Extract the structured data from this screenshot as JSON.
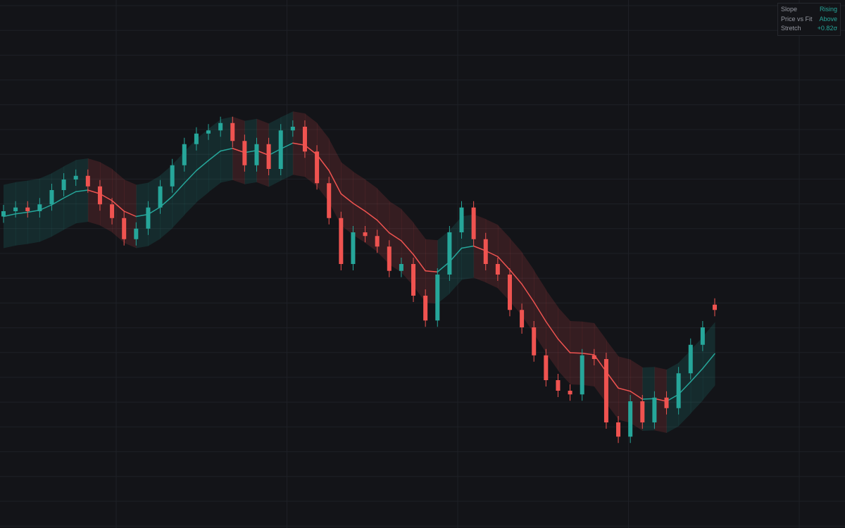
{
  "chart_data": {
    "type": "candlestick",
    "ylim": [
      0,
      100
    ],
    "up_color": "#26a69a",
    "down_color": "#ef5350",
    "grid": true,
    "open": [
      59,
      60,
      60.7,
      60,
      61.3,
      64,
      66,
      66.7,
      64.7,
      61.3,
      58.7,
      54.7,
      56.7,
      60.7,
      64.7,
      68.7,
      72.7,
      74.7,
      75.3,
      76.7,
      73.3,
      68.7,
      72.7,
      68,
      75.3,
      76,
      71.3,
      65.3,
      58.7,
      50,
      56,
      55.3,
      53.3,
      48.7,
      50,
      44,
      39.3,
      48,
      56,
      60.7,
      54.7,
      50,
      48,
      41.3,
      38,
      32.7,
      28,
      26,
      25.3,
      32.7,
      32,
      20,
      17.3,
      24,
      20,
      24.7,
      22.7,
      29.3,
      34.7,
      42.3
    ],
    "high": [
      61.2,
      61.9,
      61.9,
      62.5,
      65.2,
      67.2,
      67.9,
      67.9,
      65.9,
      62.5,
      59.9,
      57.9,
      61.9,
      65.9,
      69.9,
      73.9,
      75.9,
      76.5,
      77.9,
      77.9,
      74.5,
      73.9,
      73.9,
      76.5,
      77.2,
      77.2,
      72.5,
      66.5,
      59.9,
      57.2,
      57.2,
      56.5,
      54.5,
      51.2,
      51.2,
      45.2,
      49.2,
      57.2,
      61.9,
      61.9,
      55.9,
      51.2,
      49.2,
      42.5,
      39.2,
      33.9,
      29.2,
      27.2,
      33.9,
      33.9,
      33.2,
      21.2,
      25.2,
      25.2,
      25.9,
      25.9,
      30.5,
      35.9,
      39.2,
      43.5
    ],
    "low": [
      57.8,
      58.8,
      58.8,
      58.8,
      60.1,
      62.8,
      64.8,
      63.5,
      60.1,
      57.5,
      53.5,
      53.5,
      55.5,
      59.5,
      63.5,
      67.5,
      71.5,
      73.5,
      74.1,
      72.1,
      67.5,
      67.5,
      66.8,
      66.8,
      74.1,
      70.1,
      64.1,
      57.5,
      48.8,
      48.8,
      54.1,
      52.1,
      47.5,
      47.5,
      42.8,
      38.1,
      38.1,
      46.8,
      54.8,
      53.5,
      48.8,
      46.8,
      40.1,
      36.8,
      31.5,
      26.8,
      24.8,
      24.1,
      24.1,
      30.8,
      18.8,
      16.1,
      16.1,
      18.8,
      18.8,
      21.5,
      21.5,
      28.1,
      33.5,
      40.1
    ],
    "close": [
      60,
      60.7,
      60,
      61.3,
      64,
      66,
      66.7,
      64.7,
      61.3,
      58.7,
      54.7,
      56.7,
      60.7,
      64.7,
      68.7,
      72.7,
      74.7,
      75.3,
      76.7,
      73.3,
      68.7,
      72.7,
      68,
      75.3,
      76,
      71.3,
      65.3,
      58.7,
      50,
      56,
      55.3,
      53.3,
      48.7,
      50,
      44,
      39.3,
      48,
      56,
      60.7,
      54.7,
      50,
      48,
      41.3,
      38,
      32.7,
      28,
      26,
      25.3,
      32.7,
      32,
      20,
      17.3,
      24,
      20,
      24.7,
      22.7,
      29.3,
      34.7,
      38,
      41.3
    ],
    "fit": [
      59,
      59.5,
      59.8,
      60.2,
      61.2,
      62.5,
      63.7,
      64,
      63.3,
      62,
      60,
      59,
      59.4,
      60.8,
      62.8,
      65.3,
      67.7,
      69.6,
      71.4,
      71.9,
      71.1,
      71.5,
      70.6,
      71.8,
      72.9,
      72.5,
      70.7,
      67.7,
      63.3,
      61.5,
      60,
      58.3,
      55.9,
      54.4,
      51.8,
      48.7,
      48.5,
      50.4,
      53,
      53.4,
      52.5,
      51.4,
      48.9,
      46.2,
      42.8,
      39.1,
      35.8,
      33.2,
      33.1,
      32.8,
      29.6,
      26.5,
      25.9,
      24.4,
      24.5,
      24,
      25.3,
      27.7,
      30.2,
      33
    ],
    "upper": [
      65,
      65.5,
      65.8,
      66.2,
      67.2,
      68.5,
      69.7,
      70,
      69.3,
      68,
      66,
      65,
      65.4,
      66.8,
      68.8,
      71.3,
      73.7,
      75.6,
      77.4,
      77.9,
      77.1,
      77.5,
      76.6,
      77.8,
      78.9,
      78.5,
      76.7,
      73.7,
      69.3,
      67.5,
      66,
      64.3,
      61.9,
      60.4,
      57.8,
      54.7,
      54.5,
      56.4,
      59,
      59.4,
      58.5,
      57.4,
      54.9,
      52.2,
      48.8,
      45.1,
      41.8,
      39.2,
      39.1,
      38.8,
      35.6,
      32.5,
      31.9,
      30.4,
      30.5,
      30,
      31.3,
      33.7,
      36.2,
      39
    ],
    "lower": [
      53,
      53.5,
      53.8,
      54.2,
      55.2,
      56.5,
      57.7,
      58,
      57.3,
      56,
      54,
      53,
      53.4,
      54.8,
      56.8,
      59.3,
      61.7,
      63.6,
      65.4,
      65.9,
      65.1,
      65.5,
      64.6,
      65.8,
      66.9,
      66.5,
      64.7,
      61.7,
      57.3,
      55.5,
      54,
      52.3,
      49.9,
      48.4,
      45.8,
      42.7,
      42.5,
      44.4,
      47,
      47.4,
      46.5,
      45.4,
      42.9,
      40.2,
      36.8,
      33.1,
      29.8,
      27.2,
      27.1,
      26.8,
      23.6,
      20.5,
      19.9,
      18.4,
      18.5,
      18,
      19.3,
      21.7,
      24.2,
      27
    ]
  },
  "panel": {
    "rows": [
      {
        "label": "Slope",
        "value": "Rising"
      },
      {
        "label": "Price vs Fit",
        "value": "Above"
      },
      {
        "label": "Stretch",
        "value": "+0.82σ"
      }
    ]
  }
}
